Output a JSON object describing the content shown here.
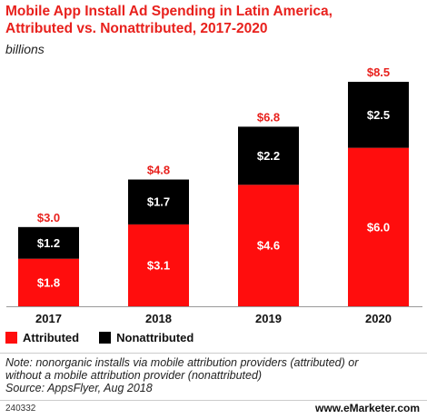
{
  "title_line1": "Mobile App Install Ad Spending in Latin America,",
  "title_line2": "Attributed vs. Nonattributed, 2017-2020",
  "subtitle": "billions",
  "colors": {
    "attributed": "#ff0d0d",
    "nonattributed": "#000000",
    "total_label": "#e8211d"
  },
  "chart_data": {
    "type": "bar",
    "stacked": true,
    "categories": [
      "2017",
      "2018",
      "2019",
      "2020"
    ],
    "series": [
      {
        "name": "Attributed",
        "values": [
          1.8,
          3.1,
          4.6,
          6.0
        ],
        "labels": [
          "$1.8",
          "$3.1",
          "$4.6",
          "$6.0"
        ]
      },
      {
        "name": "Nonattributed",
        "values": [
          1.2,
          1.7,
          2.2,
          2.5
        ],
        "labels": [
          "$1.2",
          "$1.7",
          "$2.2",
          "$2.5"
        ]
      }
    ],
    "totals": [
      3.0,
      4.8,
      6.8,
      8.5
    ],
    "total_labels": [
      "$3.0",
      "$4.8",
      "$6.8",
      "$8.5"
    ],
    "ylim": [
      0,
      8.5
    ],
    "grid": false,
    "legend_position": "bottom-left"
  },
  "legend": [
    {
      "label": "Attributed"
    },
    {
      "label": "Nonattributed"
    }
  ],
  "note_line1": "Note: nonorganic installs via mobile attribution providers (attributed) or",
  "note_line2": "without a mobile attribution provider (nonattributed)",
  "source": "Source: AppsFlyer, Aug 2018",
  "chart_id": "240332",
  "brand_prefix": "www.",
  "brand_name": "eMarketer",
  "brand_suffix": ".com"
}
